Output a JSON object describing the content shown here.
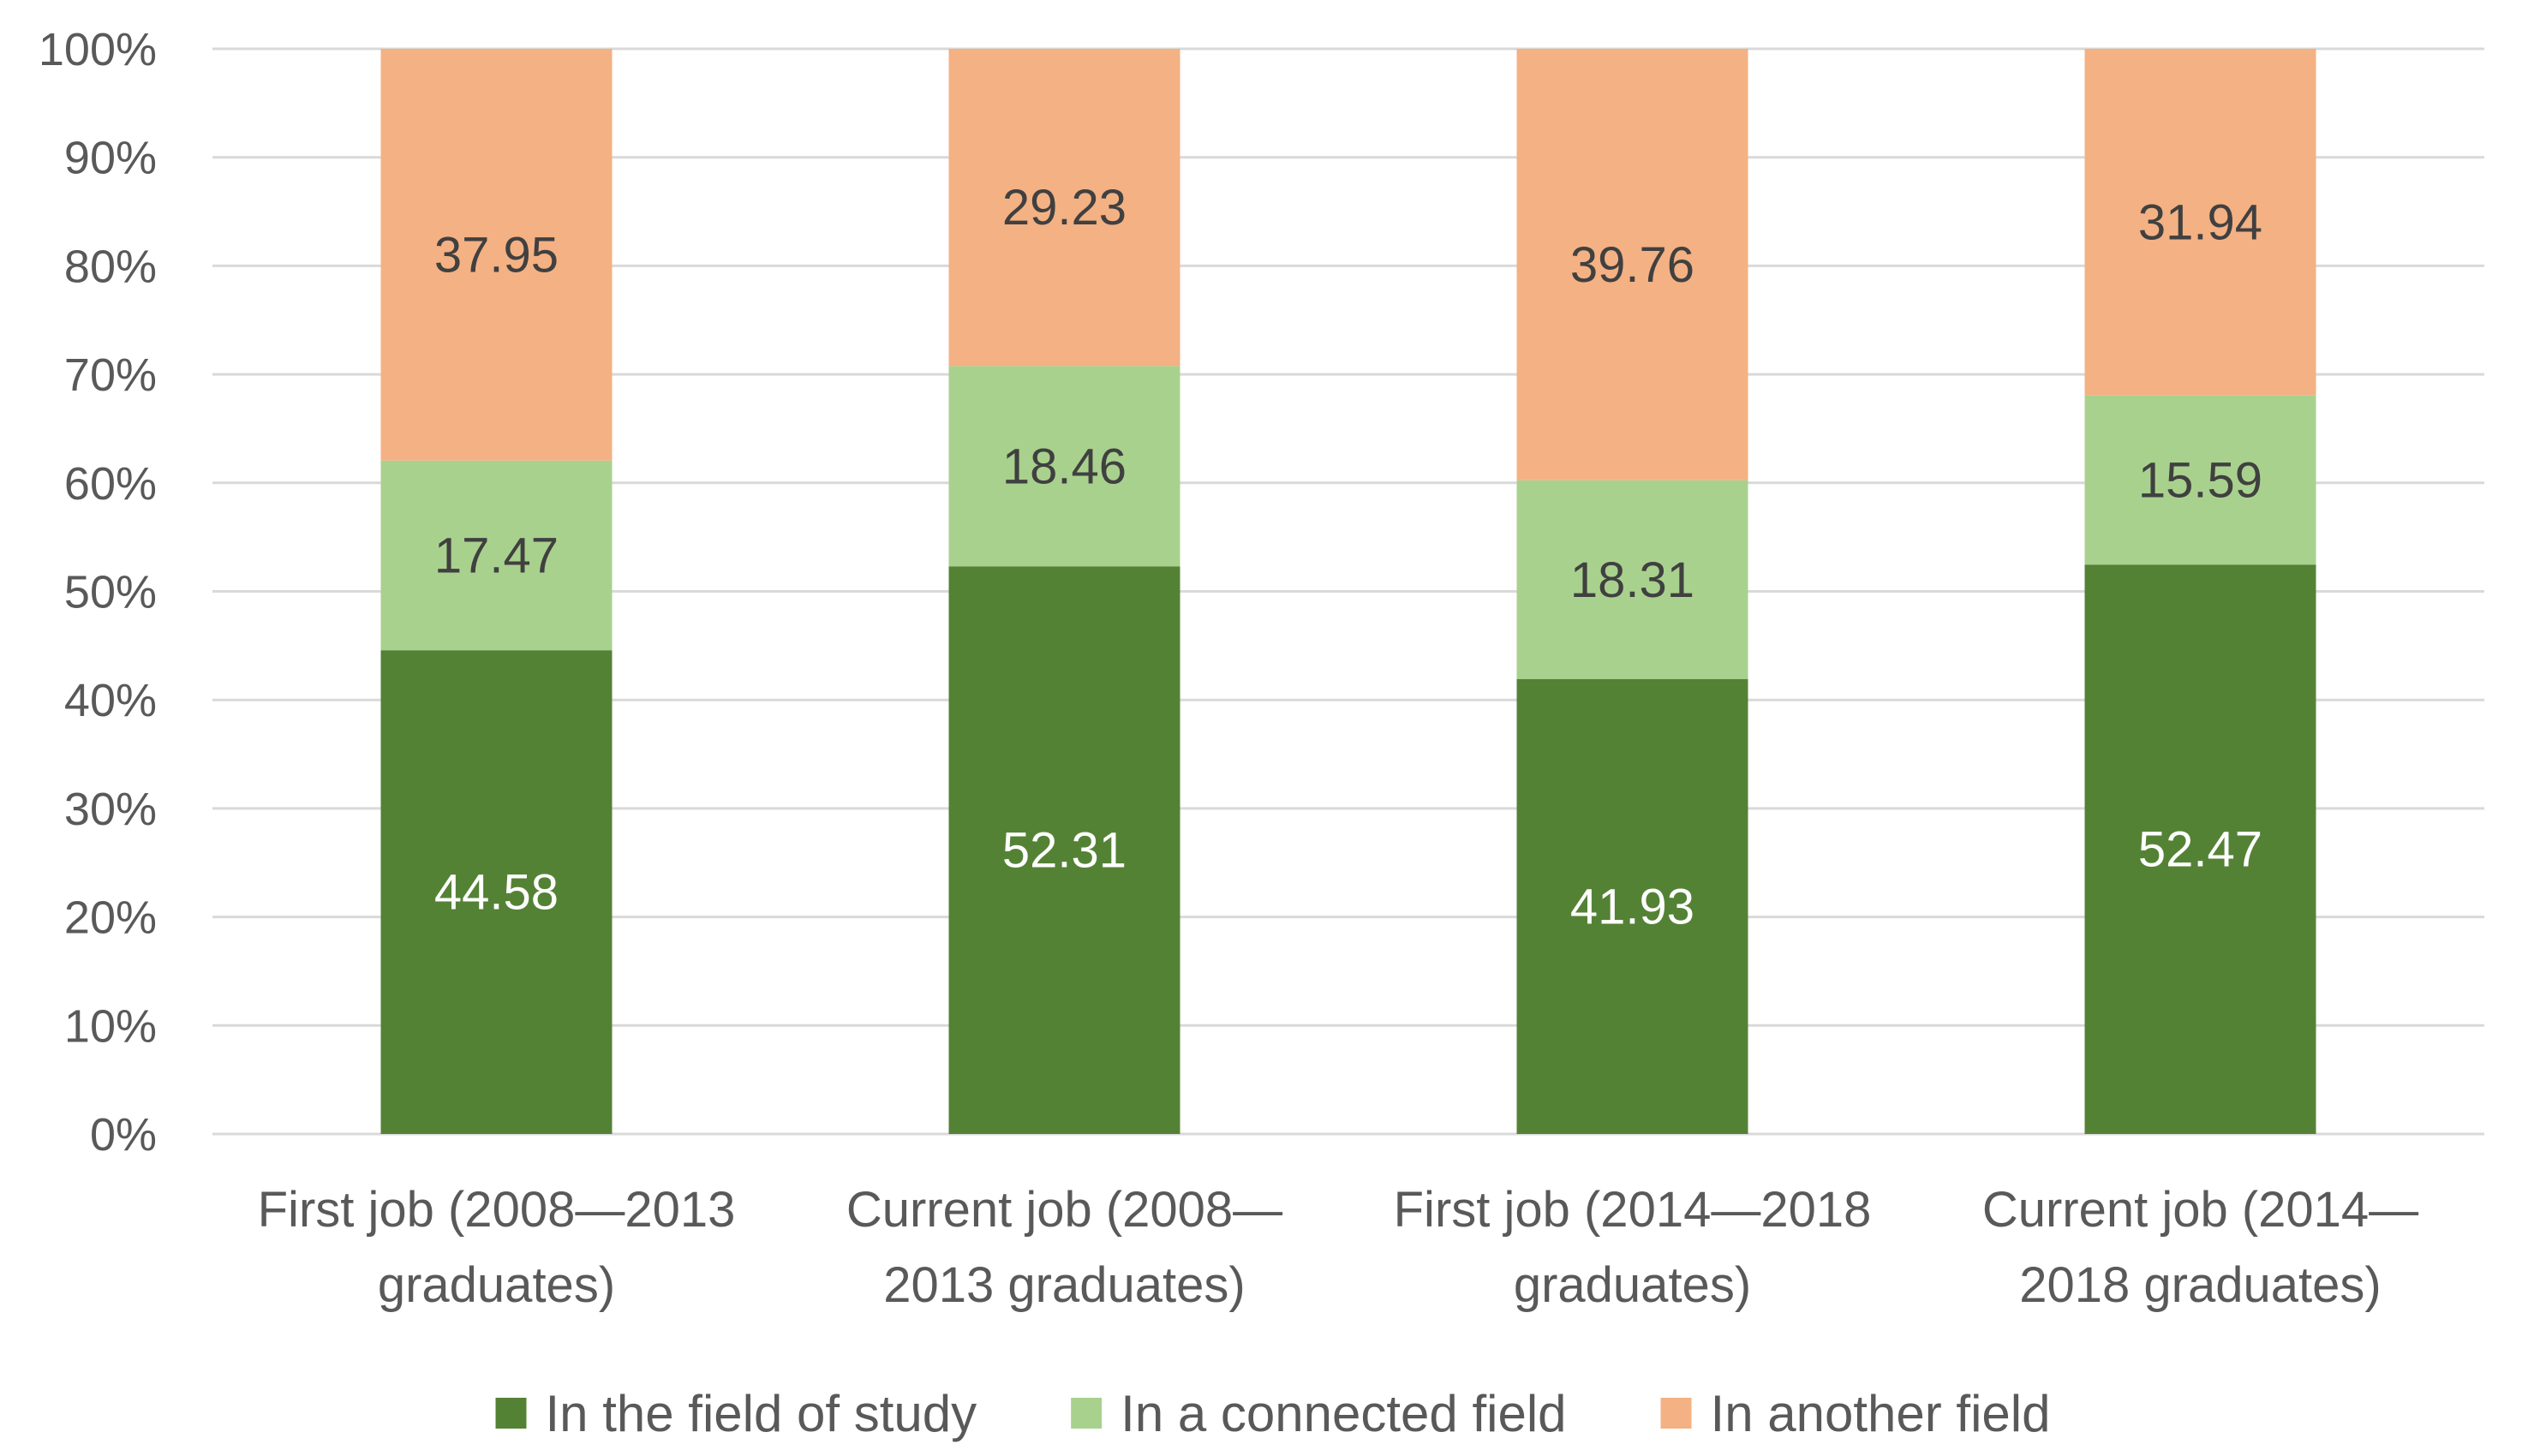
{
  "chart_data": {
    "type": "bar",
    "stacked": true,
    "percent_stacked": true,
    "title": "",
    "xlabel": "",
    "ylabel": "",
    "ylim": [
      0,
      100
    ],
    "y_ticks": [
      "0%",
      "10%",
      "20%",
      "30%",
      "40%",
      "50%",
      "60%",
      "70%",
      "80%",
      "90%",
      "100%"
    ],
    "grid": true,
    "legend_position": "bottom",
    "categories": [
      [
        "First job (2008—2013",
        "graduates)"
      ],
      [
        "Current job (2008—",
        "2013 graduates)"
      ],
      [
        "First job (2014—2018",
        "graduates)"
      ],
      [
        "Current job (2014—",
        "2018 graduates)"
      ]
    ],
    "series": [
      {
        "name": "In the field of study",
        "color": "#548235",
        "label_color": "#ffffff",
        "values": [
          44.58,
          52.31,
          41.93,
          52.47
        ],
        "labels": [
          "44.58",
          "52.31",
          "41.93",
          "52.47"
        ]
      },
      {
        "name": "In a connected field",
        "color": "#a9d18e",
        "label_color": "#404040",
        "values": [
          17.47,
          18.46,
          18.31,
          15.59
        ],
        "labels": [
          "17.47",
          "18.46",
          "18.31",
          "15.59"
        ]
      },
      {
        "name": "In another field",
        "color": "#f4b183",
        "label_color": "#404040",
        "values": [
          37.95,
          29.23,
          39.76,
          31.94
        ],
        "labels": [
          "37.95",
          "29.23",
          "39.76",
          "31.94"
        ]
      }
    ]
  },
  "colors": {
    "grid": "#d9d9d9",
    "axis_text": "#595959"
  }
}
